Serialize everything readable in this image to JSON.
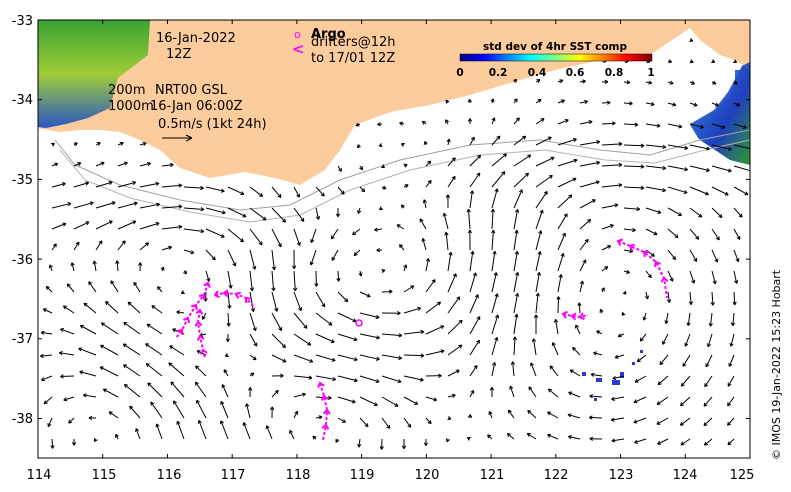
{
  "map": {
    "x_ticks": [
      "114",
      "115",
      "116",
      "117",
      "118",
      "119",
      "120",
      "121",
      "122",
      "123",
      "124",
      "125"
    ],
    "y_ticks": [
      "-33",
      "-34",
      "-35",
      "-36",
      "-37",
      "-38"
    ],
    "lon_range": [
      114,
      125
    ],
    "lat_range": [
      -38.5,
      -33
    ],
    "land_color": "#fdcc9c",
    "ocean_color": "#ffffff",
    "vector_color": "#000000",
    "drifter_color": "#ff00ff"
  },
  "annotations": {
    "date": "16-Jan-2022",
    "time": "12Z",
    "contour_200": "200m",
    "contour_1000": "1000m",
    "product": "NRT00 GSL",
    "product_time": "16-Jan 06:00Z",
    "scale_label": "0.5m/s (1kt 24h)"
  },
  "legend": {
    "argo_symbol": "o",
    "argo_label": "Argo",
    "drifter_symbol": "<",
    "drifter_label_1": "drifters@12h",
    "drifter_label_2": "to 17/01 12Z"
  },
  "colorbar": {
    "title": "std dev of 4hr SST comp",
    "ticks": [
      "0",
      "0.2",
      "0.4",
      "0.6",
      "0.8",
      "1"
    ],
    "range": [
      0,
      1
    ]
  },
  "credit": "© IMOS 19-Jan-2022 15:23 Hobart"
}
